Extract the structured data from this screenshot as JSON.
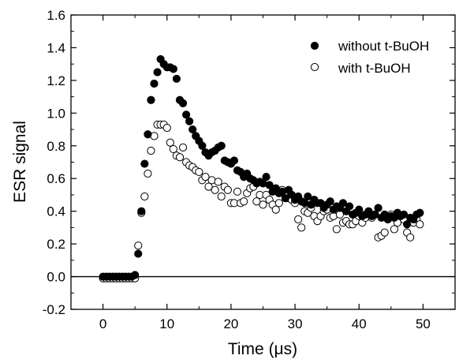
{
  "chart_data": {
    "type": "scatter",
    "title": "",
    "xlabel": "Time (μs)",
    "ylabel": "ESR signal",
    "xlim": [
      -5,
      55
    ],
    "ylim": [
      -0.2,
      1.6
    ],
    "x_ticks": [
      0,
      10,
      20,
      30,
      40,
      50
    ],
    "y_ticks": [
      -0.2,
      0.0,
      0.2,
      0.4,
      0.6,
      0.8,
      1.0,
      1.2,
      1.4,
      1.6
    ],
    "x_tick_labels": [
      "0",
      "10",
      "20",
      "30",
      "40",
      "50"
    ],
    "y_tick_labels": [
      "-0.2",
      "0.0",
      "0.2",
      "0.4",
      "0.6",
      "0.8",
      "1.0",
      "1.2",
      "1.4",
      "1.6"
    ],
    "reference_line_y": 0,
    "grid": false,
    "legend_position": "top-right",
    "series": [
      {
        "name": "without t-BuOH",
        "marker": "filled-circle",
        "color": "#000000",
        "x": [
          0.0,
          0.5,
          1.0,
          1.5,
          2.0,
          2.5,
          3.0,
          3.5,
          4.0,
          4.5,
          5.0,
          5.5,
          6.0,
          6.5,
          7.0,
          7.5,
          8.0,
          8.5,
          9.0,
          9.5,
          10.0,
          10.5,
          11.0,
          11.5,
          12.0,
          12.5,
          13.0,
          13.5,
          14.0,
          14.5,
          15.0,
          15.5,
          16.0,
          16.5,
          17.0,
          17.5,
          18.0,
          18.5,
          19.0,
          19.5,
          20.0,
          20.5,
          21.0,
          21.5,
          22.0,
          22.5,
          23.0,
          23.5,
          24.0,
          24.5,
          25.0,
          25.5,
          26.0,
          26.5,
          27.0,
          27.5,
          28.0,
          28.5,
          29.0,
          29.5,
          30.0,
          30.5,
          31.0,
          31.5,
          32.0,
          32.5,
          33.0,
          33.5,
          34.0,
          34.5,
          35.0,
          35.5,
          36.0,
          36.5,
          37.0,
          37.5,
          38.0,
          38.5,
          39.0,
          39.5,
          40.0,
          40.5,
          41.0,
          41.5,
          42.0,
          42.5,
          43.0,
          43.5,
          44.0,
          44.5,
          45.0,
          45.5,
          46.0,
          46.5,
          47.0,
          47.5,
          48.0,
          48.5,
          49.0,
          49.5
        ],
        "y": [
          0.0,
          0.0,
          0.0,
          0.0,
          0.0,
          0.0,
          0.0,
          0.0,
          0.0,
          0.0,
          0.01,
          0.14,
          0.4,
          0.69,
          0.87,
          1.08,
          1.18,
          1.25,
          1.33,
          1.3,
          1.28,
          1.28,
          1.27,
          1.21,
          1.08,
          1.06,
          0.99,
          0.95,
          0.9,
          0.86,
          0.83,
          0.8,
          0.76,
          0.74,
          0.76,
          0.77,
          0.79,
          0.8,
          0.71,
          0.7,
          0.69,
          0.71,
          0.65,
          0.64,
          0.61,
          0.63,
          0.6,
          0.59,
          0.57,
          0.58,
          0.57,
          0.61,
          0.56,
          0.52,
          0.54,
          0.51,
          0.52,
          0.48,
          0.53,
          0.5,
          0.47,
          0.49,
          0.46,
          0.45,
          0.49,
          0.44,
          0.47,
          0.45,
          0.45,
          0.42,
          0.44,
          0.46,
          0.41,
          0.43,
          0.42,
          0.45,
          0.4,
          0.43,
          0.38,
          0.39,
          0.41,
          0.37,
          0.38,
          0.4,
          0.37,
          0.38,
          0.42,
          0.36,
          0.38,
          0.35,
          0.37,
          0.36,
          0.39,
          0.37,
          0.38,
          0.32,
          0.36,
          0.35,
          0.38,
          0.39
        ]
      },
      {
        "name": "with t-BuOH",
        "marker": "open-circle",
        "color": "#000000",
        "x": [
          0.0,
          0.5,
          1.0,
          1.5,
          2.0,
          2.5,
          3.0,
          3.5,
          4.0,
          4.5,
          5.0,
          5.5,
          6.0,
          6.5,
          7.0,
          7.5,
          8.0,
          8.5,
          9.0,
          9.5,
          10.0,
          10.5,
          11.0,
          11.5,
          12.0,
          12.5,
          13.0,
          13.5,
          14.0,
          14.5,
          15.0,
          15.5,
          16.0,
          16.5,
          17.0,
          17.5,
          18.0,
          18.5,
          19.0,
          19.5,
          20.0,
          20.5,
          21.0,
          21.5,
          22.0,
          22.5,
          23.0,
          23.5,
          24.0,
          24.5,
          25.0,
          25.5,
          26.0,
          26.5,
          27.0,
          27.5,
          28.0,
          28.5,
          29.0,
          29.5,
          30.0,
          30.5,
          31.0,
          31.5,
          32.0,
          32.5,
          33.0,
          33.5,
          34.0,
          34.5,
          35.0,
          35.5,
          36.0,
          36.5,
          37.0,
          37.5,
          38.0,
          38.5,
          39.0,
          39.5,
          40.0,
          40.5,
          41.0,
          41.5,
          42.0,
          42.5,
          43.0,
          43.5,
          44.0,
          44.5,
          45.0,
          45.5,
          46.0,
          46.5,
          47.0,
          47.5,
          48.0,
          48.5,
          49.0,
          49.5
        ],
        "y": [
          -0.01,
          -0.01,
          -0.01,
          -0.01,
          -0.01,
          -0.01,
          -0.01,
          -0.01,
          -0.01,
          -0.01,
          -0.01,
          0.19,
          0.39,
          0.49,
          0.63,
          0.77,
          0.86,
          0.93,
          0.93,
          0.93,
          0.91,
          0.82,
          0.78,
          0.74,
          0.73,
          0.79,
          0.7,
          0.68,
          0.67,
          0.65,
          0.64,
          0.59,
          0.61,
          0.55,
          0.59,
          0.53,
          0.58,
          0.49,
          0.55,
          0.53,
          0.45,
          0.45,
          0.52,
          0.45,
          0.46,
          0.51,
          0.54,
          0.55,
          0.46,
          0.5,
          0.44,
          0.5,
          0.47,
          0.44,
          0.41,
          0.45,
          0.53,
          0.49,
          0.48,
          0.47,
          0.45,
          0.35,
          0.3,
          0.4,
          0.39,
          0.42,
          0.37,
          0.34,
          0.37,
          0.4,
          0.41,
          0.36,
          0.37,
          0.29,
          0.38,
          0.33,
          0.34,
          0.32,
          0.32,
          0.34,
          0.37,
          0.33,
          0.36,
          0.39,
          0.36,
          0.38,
          0.24,
          0.25,
          0.27,
          0.35,
          0.38,
          0.29,
          0.33,
          0.37,
          0.35,
          0.27,
          0.24,
          0.33,
          0.35,
          0.32
        ]
      }
    ]
  }
}
